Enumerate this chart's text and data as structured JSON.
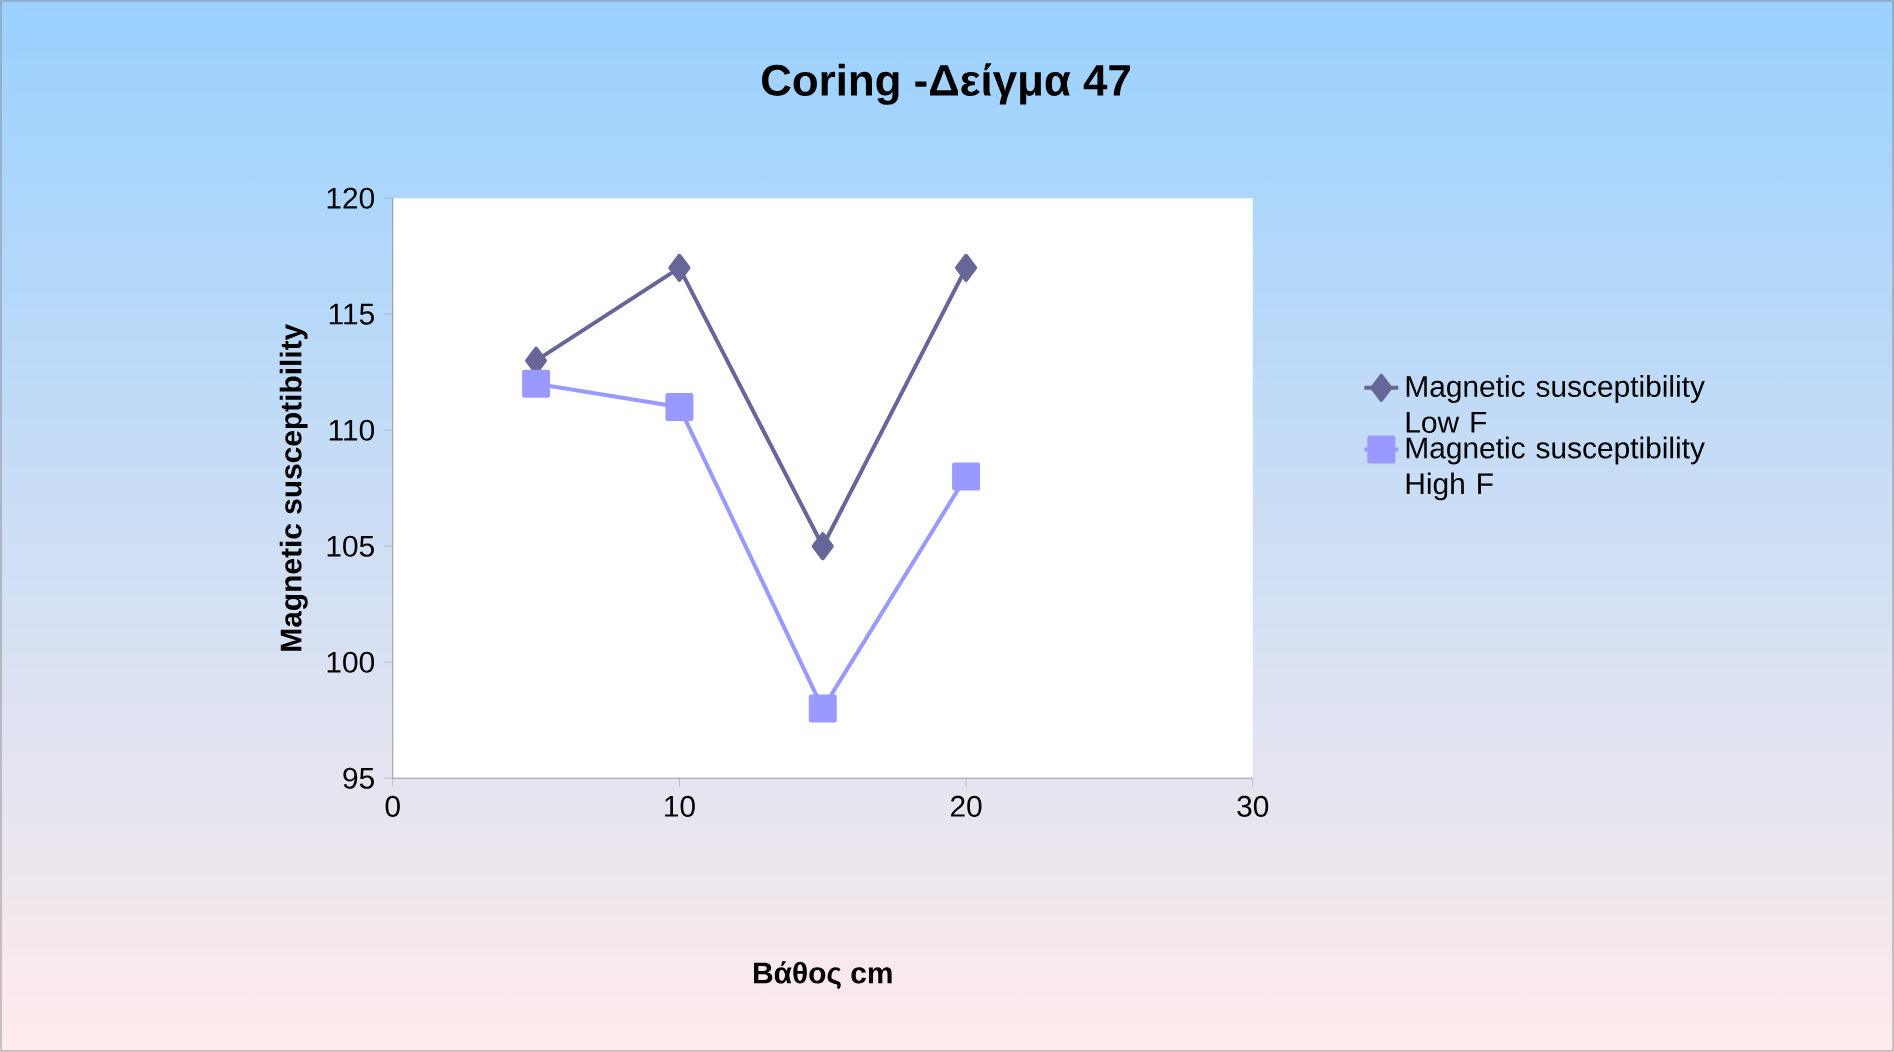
{
  "chart_data": {
    "type": "line",
    "title": "Coring -Δείγμα 47",
    "xlabel": "Βάθος cm",
    "ylabel": "Magnetic susceptibility",
    "x": [
      5,
      10,
      15,
      20
    ],
    "series": [
      {
        "name": "Magnetic susceptibility Low F",
        "color": "#666699",
        "marker": "diamond",
        "values": [
          113,
          117,
          105,
          117
        ]
      },
      {
        "name": "Magnetic susceptibility High F",
        "color": "#9999ff",
        "marker": "square",
        "values": [
          112,
          111,
          98,
          108
        ]
      }
    ],
    "xlim": [
      0,
      30
    ],
    "ylim": [
      95,
      120
    ],
    "xticks": [
      0,
      10,
      20,
      30
    ],
    "yticks": [
      95,
      100,
      105,
      110,
      115,
      120
    ],
    "legend": "right"
  }
}
